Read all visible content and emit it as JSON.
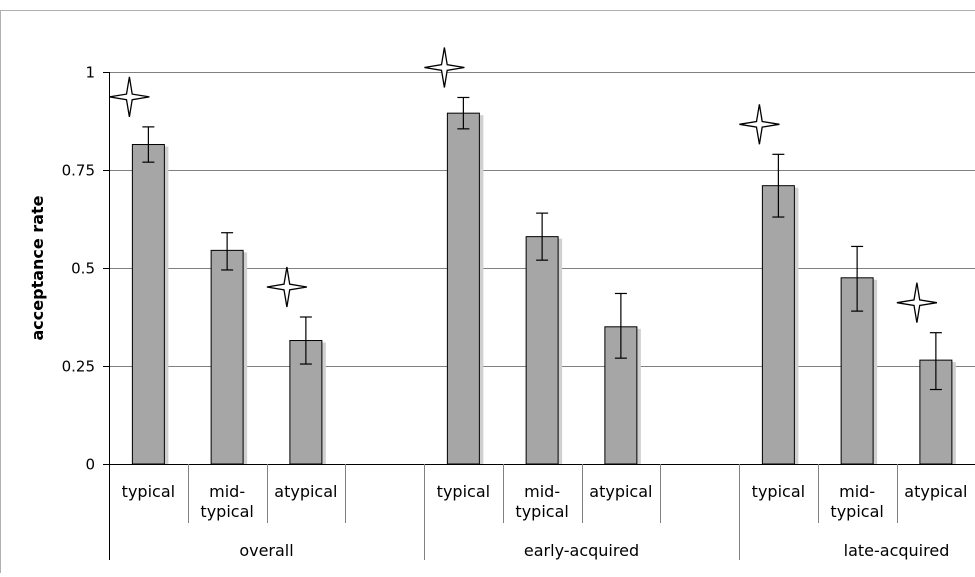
{
  "chart_data": {
    "type": "bar",
    "ylabel": "acceptance rate",
    "ylim": [
      0,
      1
    ],
    "yticks": [
      0,
      0.25,
      0.5,
      0.75,
      1
    ],
    "ytick_labels": [
      "0",
      "0.25",
      "0.5",
      "0.75",
      "1"
    ],
    "grid": true,
    "groups": [
      {
        "label": "overall",
        "bars": [
          {
            "label": "typical",
            "value": 0.815,
            "err_low": 0.77,
            "err_high": 0.86,
            "star": true
          },
          {
            "label": "mid-typical",
            "value": 0.545,
            "err_low": 0.495,
            "err_high": 0.59,
            "star": false
          },
          {
            "label": "atypical",
            "value": 0.315,
            "err_low": 0.255,
            "err_high": 0.375,
            "star": true
          }
        ]
      },
      {
        "label": "early-acquired",
        "bars": [
          {
            "label": "typical",
            "value": 0.895,
            "err_low": 0.855,
            "err_high": 0.935,
            "star": true
          },
          {
            "label": "mid-typical",
            "value": 0.58,
            "err_low": 0.52,
            "err_high": 0.64,
            "star": false
          },
          {
            "label": "atypical",
            "value": 0.35,
            "err_low": 0.27,
            "err_high": 0.435,
            "star": false
          }
        ]
      },
      {
        "label": "late-acquired",
        "bars": [
          {
            "label": "typical",
            "value": 0.71,
            "err_low": 0.63,
            "err_high": 0.79,
            "star": true
          },
          {
            "label": "mid-typical",
            "value": 0.475,
            "err_low": 0.39,
            "err_high": 0.555,
            "star": false
          },
          {
            "label": "atypical",
            "value": 0.265,
            "err_low": 0.19,
            "err_high": 0.335,
            "star": true
          }
        ]
      }
    ],
    "bar_color": "#a6a6a6",
    "shadow_color": "#d0d0d0",
    "grid_color": "#808080",
    "star_fill": "#ffffff",
    "star_stroke": "#000000"
  }
}
